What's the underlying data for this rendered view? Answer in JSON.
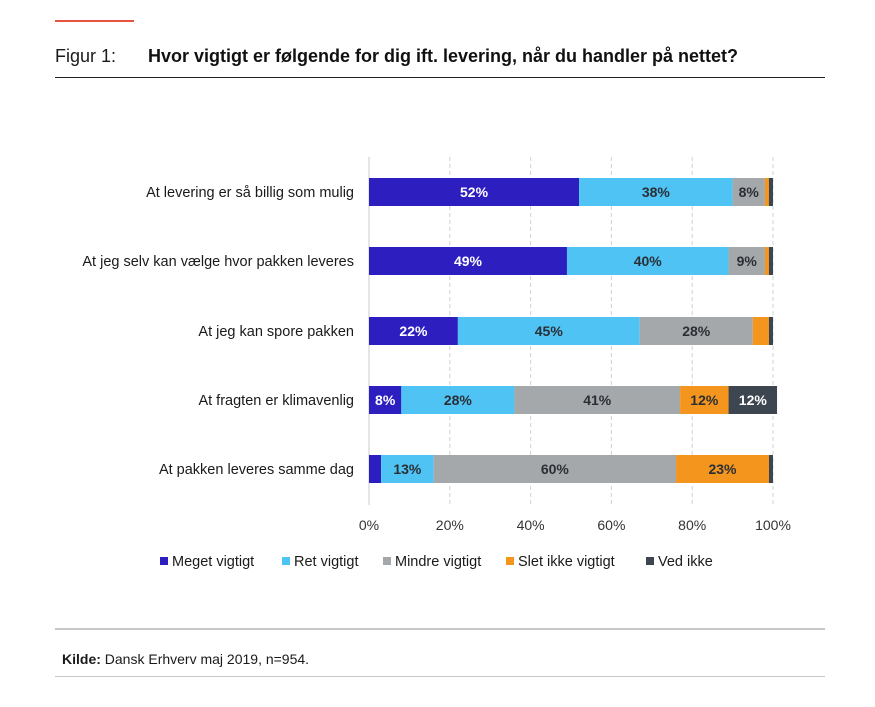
{
  "header": {
    "figure_label": "Figur 1:",
    "title": "Hvor vigtigt er følgende for dig ift. levering, når du handler på nettet?"
  },
  "source": {
    "label": "Kilde:",
    "text": " Dansk Erhverv maj 2019, n=954."
  },
  "colors": {
    "Meget vigtigt": "#2d1fbf",
    "Ret vigtigt": "#4fc3f3",
    "Mindre vigtigt": "#a5a8aa",
    "Slet ikke vigtigt": "#f4951d",
    "Ved ikke": "#3d4550",
    "accent": "#e8553f"
  },
  "chart_data": {
    "type": "bar",
    "orientation": "horizontal",
    "stacked": true,
    "title": "Hvor vigtigt er følgende for dig ift. levering, når du handler på nettet?",
    "categories": [
      "At levering er så billig som mulig",
      "At jeg selv kan vælge hvor pakken leveres",
      "At jeg kan spore pakken",
      "At fragten er klimavenlig",
      "At pakken leveres samme dag"
    ],
    "series": [
      {
        "name": "Meget vigtigt",
        "values": [
          52,
          49,
          22,
          8,
          3
        ],
        "labels": [
          "52%",
          "49%",
          "22%",
          "8%",
          ""
        ]
      },
      {
        "name": "Ret vigtigt",
        "values": [
          38,
          40,
          45,
          28,
          13
        ],
        "labels": [
          "38%",
          "40%",
          "45%",
          "28%",
          "13%"
        ]
      },
      {
        "name": "Mindre vigtigt",
        "values": [
          8,
          9,
          28,
          41,
          60
        ],
        "labels": [
          "8%",
          "9%",
          "28%",
          "41%",
          "60%"
        ]
      },
      {
        "name": "Slet ikke vigtigt",
        "values": [
          1,
          1,
          4,
          12,
          23
        ],
        "labels": [
          "",
          "",
          "",
          "12%",
          "23%"
        ]
      },
      {
        "name": "Ved ikke",
        "values": [
          1,
          1,
          1,
          12,
          1
        ],
        "labels": [
          "",
          "",
          "",
          "12%",
          ""
        ]
      }
    ],
    "xlim": [
      0,
      100
    ],
    "xticks": [
      "0%",
      "20%",
      "40%",
      "60%",
      "80%",
      "100%"
    ],
    "grid": true,
    "legend": "bottom"
  }
}
